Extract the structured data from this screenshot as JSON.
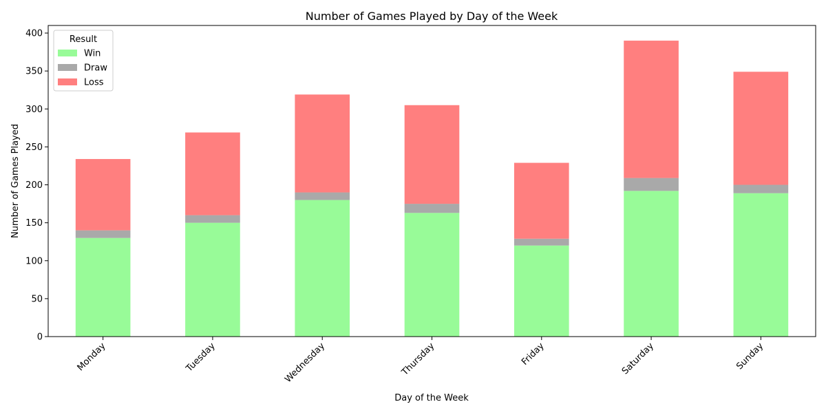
{
  "chart_data": {
    "type": "bar",
    "stacked": true,
    "title": "Number of Games Played by Day of the Week",
    "xlabel": "Day of the Week",
    "ylabel": "Number of Games Played",
    "categories": [
      "Monday",
      "Tuesday",
      "Wednesday",
      "Thursday",
      "Friday",
      "Saturday",
      "Sunday"
    ],
    "series": [
      {
        "name": "Win",
        "color": "#98fb98",
        "values": [
          130,
          150,
          180,
          163,
          120,
          192,
          189
        ]
      },
      {
        "name": "Draw",
        "color": "#a9a9a9",
        "values": [
          10,
          10,
          10,
          12,
          9,
          17,
          11
        ]
      },
      {
        "name": "Loss",
        "color": "#ff7f7f",
        "values": [
          94,
          109,
          129,
          130,
          100,
          181,
          149
        ]
      }
    ],
    "ylim": [
      0,
      410
    ],
    "yticks": [
      0,
      50,
      100,
      150,
      200,
      250,
      300,
      350,
      400
    ],
    "grid": false,
    "legend": {
      "title": "Result",
      "position": "top-left"
    }
  }
}
